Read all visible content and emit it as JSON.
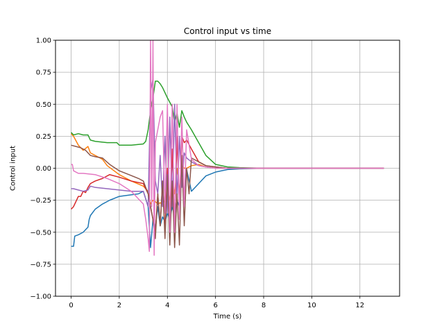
{
  "chart_data": {
    "type": "line",
    "title": "Control input vs time",
    "xlabel": "Time (s)",
    "ylabel": "Control input",
    "xlim": [
      -0.65,
      13.65
    ],
    "ylim": [
      -1.0,
      1.0
    ],
    "xticks": [
      0,
      2,
      4,
      6,
      8,
      10,
      12
    ],
    "yticks": [
      -1.0,
      -0.75,
      -0.5,
      -0.25,
      0.0,
      0.25,
      0.5,
      0.75,
      1.0
    ],
    "xtick_labels": [
      "0",
      "2",
      "4",
      "6",
      "8",
      "10",
      "12"
    ],
    "ytick_labels": [
      "−1.00",
      "−0.75",
      "−0.50",
      "−0.25",
      "0.00",
      "0.25",
      "0.50",
      "0.75",
      "1.00"
    ],
    "grid": true,
    "legend": "none",
    "series": [
      {
        "color": "#1f77b4",
        "x": [
          0,
          0.1,
          0.15,
          0.3,
          0.5,
          0.7,
          0.75,
          0.8,
          1.0,
          1.3,
          1.6,
          2.0,
          2.4,
          2.8,
          3.0,
          3.2,
          3.3,
          3.4,
          3.5,
          3.6,
          3.7,
          3.8,
          3.9,
          4.0,
          4.1,
          4.2,
          4.3,
          4.4,
          4.5,
          4.6,
          4.7,
          4.8,
          5.0,
          5.3,
          5.6,
          6.0,
          6.5,
          7.0,
          8.0,
          9.0,
          10.0,
          11.0,
          12.0,
          13.0
        ],
        "y": [
          -0.61,
          -0.61,
          -0.53,
          -0.52,
          -0.5,
          -0.46,
          -0.4,
          -0.37,
          -0.32,
          -0.28,
          -0.25,
          -0.22,
          -0.21,
          -0.2,
          -0.18,
          -0.3,
          -0.62,
          -0.4,
          -0.46,
          -0.3,
          -0.45,
          -0.38,
          -0.42,
          -0.35,
          -0.4,
          -0.3,
          -0.38,
          -0.25,
          -0.3,
          -0.02,
          -0.2,
          -0.01,
          -0.18,
          -0.12,
          -0.06,
          -0.03,
          -0.01,
          -0.005,
          0.0,
          0.0,
          0.0,
          0.0,
          0.0,
          0.0
        ]
      },
      {
        "color": "#ff7f0e",
        "x": [
          0,
          0.1,
          0.3,
          0.5,
          0.7,
          0.8,
          1.0,
          1.3,
          1.5,
          2.0,
          2.5,
          3.0,
          3.2,
          3.3,
          3.4,
          3.5,
          3.6,
          3.7,
          3.8,
          3.9,
          4.0,
          4.1,
          4.2,
          4.3,
          4.4,
          4.5,
          4.6,
          4.7,
          4.8,
          5.0,
          5.3,
          5.6,
          6.0,
          6.5,
          7.0,
          8.0,
          9.0,
          10.0,
          11.0,
          12.0,
          13.0
        ],
        "y": [
          0.27,
          0.25,
          0.18,
          0.14,
          0.17,
          0.12,
          0.1,
          0.07,
          0.02,
          -0.05,
          -0.1,
          -0.14,
          -0.18,
          -0.28,
          -0.25,
          -0.26,
          -0.28,
          -0.27,
          -0.28,
          -0.25,
          -0.2,
          -0.25,
          -0.1,
          -0.2,
          0.0,
          -0.18,
          0.02,
          0.0,
          0.0,
          0.02,
          0.03,
          0.01,
          0.0,
          0.0,
          0.0,
          0.0,
          0.0,
          0.0,
          0.0,
          0.0,
          0.0
        ]
      },
      {
        "color": "#2ca02c",
        "x": [
          0,
          0.1,
          0.3,
          0.5,
          0.7,
          0.8,
          1.0,
          1.5,
          1.9,
          2.0,
          2.5,
          3.0,
          3.1,
          3.2,
          3.3,
          3.4,
          3.5,
          3.6,
          3.7,
          3.8,
          4.0,
          4.2,
          4.3,
          4.4,
          4.5,
          4.6,
          4.7,
          4.8,
          5.0,
          5.3,
          5.6,
          6.0,
          6.5,
          7.0,
          8.0,
          9.0,
          10.0,
          11.0,
          12.0,
          13.0
        ],
        "y": [
          0.28,
          0.26,
          0.27,
          0.26,
          0.26,
          0.22,
          0.21,
          0.2,
          0.2,
          0.18,
          0.18,
          0.19,
          0.21,
          0.3,
          0.45,
          0.55,
          0.68,
          0.68,
          0.66,
          0.63,
          0.55,
          0.48,
          0.36,
          0.43,
          0.32,
          0.45,
          0.4,
          0.36,
          0.3,
          0.2,
          0.1,
          0.03,
          0.01,
          0.005,
          0.0,
          0.0,
          0.0,
          0.0,
          0.0,
          0.0
        ]
      },
      {
        "color": "#d62728",
        "x": [
          0,
          0.1,
          0.2,
          0.3,
          0.4,
          0.5,
          0.6,
          0.7,
          0.8,
          1.0,
          1.3,
          1.6,
          2.0,
          2.5,
          3.0,
          3.2,
          3.3,
          3.4,
          3.5,
          3.6,
          3.7,
          3.8,
          3.9,
          4.0,
          4.1,
          4.2,
          4.3,
          4.4,
          4.5,
          4.6,
          4.7,
          4.8,
          5.0,
          5.3,
          5.6,
          6.0,
          6.5,
          7.0,
          8.0,
          9.0,
          10.0,
          11.0,
          12.0,
          13.0
        ],
        "y": [
          -0.32,
          -0.3,
          -0.26,
          -0.22,
          -0.22,
          -0.18,
          -0.19,
          -0.15,
          -0.12,
          -0.1,
          -0.08,
          -0.05,
          -0.07,
          -0.1,
          -0.12,
          -0.2,
          -0.3,
          -0.4,
          -0.5,
          -0.2,
          -0.45,
          -0.1,
          -0.5,
          0.0,
          -0.55,
          0.15,
          -0.5,
          0.25,
          -0.3,
          0.25,
          0.2,
          0.22,
          0.15,
          0.05,
          0.02,
          0.01,
          0.0,
          0.0,
          0.0,
          0.0,
          0.0,
          0.0,
          0.0,
          0.0
        ]
      },
      {
        "color": "#9467bd",
        "x": [
          0,
          0.1,
          0.3,
          0.5,
          0.7,
          0.8,
          1.0,
          1.5,
          2.0,
          2.5,
          3.0,
          3.2,
          3.3,
          3.4,
          3.5,
          3.6,
          3.7,
          3.8,
          3.9,
          4.0,
          4.1,
          4.2,
          4.3,
          4.4,
          4.5,
          4.6,
          4.7,
          4.8,
          5.0,
          5.3,
          5.6,
          6.0,
          6.5,
          7.0,
          8.0,
          9.0,
          10.0,
          11.0,
          12.0,
          13.0
        ],
        "y": [
          -0.16,
          -0.16,
          -0.17,
          -0.18,
          -0.17,
          -0.14,
          -0.15,
          -0.16,
          -0.17,
          -0.18,
          -0.18,
          -0.3,
          0.6,
          0.7,
          -0.1,
          -0.2,
          0.1,
          -0.3,
          0.25,
          -0.35,
          0.4,
          -0.3,
          0.5,
          -0.25,
          0.25,
          -0.15,
          0.12,
          0.08,
          0.05,
          0.02,
          0.01,
          0.0,
          0.0,
          0.0,
          0.0,
          0.0,
          0.0,
          0.0,
          0.0,
          0.0
        ]
      },
      {
        "color": "#8c564b",
        "x": [
          0,
          0.2,
          0.4,
          0.6,
          0.8,
          1.0,
          1.3,
          1.6,
          2.0,
          2.4,
          2.8,
          3.0,
          3.2,
          3.3,
          3.4,
          3.5,
          3.6,
          3.7,
          3.8,
          3.9,
          4.0,
          4.1,
          4.2,
          4.3,
          4.4,
          4.5,
          4.6,
          4.7,
          4.8,
          4.9,
          5.0,
          5.3,
          5.6,
          6.0,
          6.5,
          7.0,
          8.0,
          9.0,
          10.0,
          11.0,
          12.0,
          13.0
        ],
        "y": [
          0.18,
          0.17,
          0.16,
          0.14,
          0.1,
          0.09,
          0.08,
          0.03,
          -0.02,
          -0.05,
          -0.08,
          -0.1,
          -0.2,
          -0.3,
          -0.4,
          -0.55,
          -0.2,
          -0.45,
          -0.1,
          -0.55,
          -0.05,
          -0.6,
          -0.1,
          -0.62,
          -0.2,
          -0.6,
          0.1,
          -0.45,
          0.0,
          -0.2,
          0.08,
          0.05,
          0.02,
          0.01,
          0.0,
          0.0,
          0.0,
          0.0,
          0.0,
          0.0,
          0.0,
          0.0
        ]
      },
      {
        "color": "#e377c2",
        "x": [
          0,
          0.05,
          0.1,
          0.3,
          0.5,
          1.0,
          1.5,
          2.0,
          2.5,
          3.0,
          3.1,
          3.2,
          3.25,
          3.3,
          3.35,
          3.4,
          3.45,
          3.5,
          3.6,
          3.7,
          3.8,
          3.9,
          4.0,
          4.1,
          4.2,
          4.3,
          4.4,
          4.5,
          4.6,
          4.7,
          4.8,
          5.0,
          5.3,
          5.6,
          6.0,
          6.5,
          7.0,
          8.0,
          9.0,
          10.0,
          11.0,
          12.0,
          13.0
        ],
        "y": [
          0.03,
          0.03,
          -0.02,
          -0.04,
          -0.04,
          -0.05,
          -0.08,
          -0.12,
          -0.18,
          -0.28,
          -0.4,
          -0.55,
          -0.65,
          1.0,
          -0.3,
          1.0,
          -0.68,
          0.2,
          0.3,
          0.4,
          0.45,
          -0.35,
          0.5,
          -0.5,
          0.5,
          -0.5,
          0.5,
          -0.4,
          0.4,
          -0.3,
          0.3,
          0.07,
          0.02,
          0.01,
          0.0,
          0.0,
          0.0,
          0.0,
          0.0,
          0.0,
          0.0,
          0.0,
          0.0
        ]
      }
    ]
  }
}
